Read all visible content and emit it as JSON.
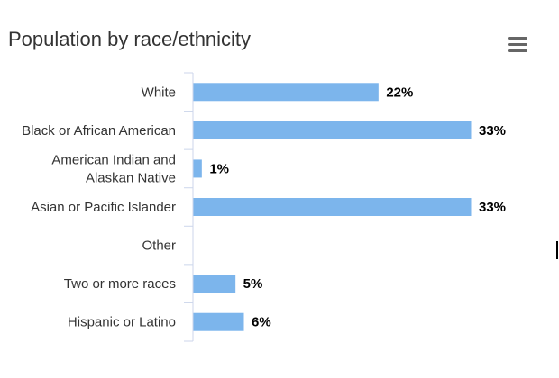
{
  "chart_data": {
    "type": "bar",
    "orientation": "horizontal",
    "title": "Population by race/ethnicity",
    "categories": [
      [
        "White"
      ],
      [
        "Black or African American"
      ],
      [
        "American Indian and",
        "Alaskan Native"
      ],
      [
        "Asian or Pacific Islander"
      ],
      [
        "Other"
      ],
      [
        "Two or more races"
      ],
      [
        "Hispanic or Latino"
      ]
    ],
    "values": [
      22,
      33,
      1,
      33,
      0,
      5,
      6
    ],
    "data_labels": [
      "22%",
      "33%",
      "1%",
      "33%",
      "",
      "5%",
      "6%"
    ],
    "unit": "%",
    "xlim": [
      0,
      35
    ],
    "grid": false,
    "legend": "none",
    "bar_color": "#7cb5ec"
  },
  "menu_icon": "hamburger-menu-icon"
}
